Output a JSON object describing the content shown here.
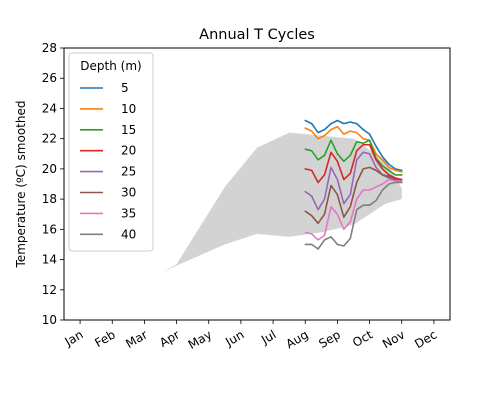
{
  "chart_data": {
    "type": "line",
    "title": "Annual T Cycles",
    "xlabel": "",
    "ylabel": "Temperature (ºC) smoothed",
    "ylim": [
      10,
      28
    ],
    "yticks": [
      10,
      12,
      14,
      16,
      18,
      20,
      22,
      24,
      26,
      28
    ],
    "xlim": [
      0,
      12
    ],
    "xticks": [
      {
        "label": "Jan",
        "x": 0.5
      },
      {
        "label": "Feb",
        "x": 1.5
      },
      {
        "label": "Mar",
        "x": 2.5
      },
      {
        "label": "Apr",
        "x": 3.5
      },
      {
        "label": "May",
        "x": 4.5
      },
      {
        "label": "Jun",
        "x": 5.5
      },
      {
        "label": "Jul",
        "x": 6.5
      },
      {
        "label": "Aug",
        "x": 7.5
      },
      {
        "label": "Sep",
        "x": 8.5
      },
      {
        "label": "Oct",
        "x": 9.5
      },
      {
        "label": "Nov",
        "x": 10.5
      },
      {
        "label": "Dec",
        "x": 11.5
      }
    ],
    "grid": false,
    "legend": {
      "title": "Depth (m)",
      "placement": "upper-left"
    },
    "band": {
      "color": "#d3d3d3",
      "upper": [
        [
          3.1,
          13.2
        ],
        [
          3.5,
          13.7
        ],
        [
          5.0,
          18.8
        ],
        [
          6.0,
          21.4
        ],
        [
          7.0,
          22.4
        ],
        [
          8.0,
          22.2
        ],
        [
          9.0,
          22.0
        ],
        [
          10.0,
          20.5
        ],
        [
          10.5,
          18.7
        ]
      ],
      "lower": [
        [
          10.5,
          18.0
        ],
        [
          10.0,
          17.7
        ],
        [
          9.0,
          16.3
        ],
        [
          8.0,
          15.8
        ],
        [
          7.0,
          15.5
        ],
        [
          6.0,
          15.7
        ],
        [
          5.0,
          15.0
        ],
        [
          3.5,
          13.6
        ],
        [
          3.1,
          13.2
        ]
      ]
    },
    "x": [
      7.5,
      7.7,
      7.9,
      8.1,
      8.3,
      8.5,
      8.7,
      8.9,
      9.1,
      9.3,
      9.5,
      9.7,
      9.9,
      10.1,
      10.3,
      10.5
    ],
    "series": [
      {
        "name": "5",
        "color": "#1f77b4",
        "values": [
          23.2,
          23.0,
          22.4,
          22.6,
          23.0,
          23.2,
          23.0,
          23.1,
          23.0,
          22.6,
          22.3,
          21.5,
          20.8,
          20.3,
          20.0,
          19.9
        ]
      },
      {
        "name": "10",
        "color": "#ff7f0e",
        "values": [
          22.7,
          22.5,
          22.0,
          22.2,
          22.6,
          22.8,
          22.3,
          22.5,
          22.4,
          22.0,
          21.9,
          21.0,
          20.6,
          20.1,
          19.9,
          19.8
        ]
      },
      {
        "name": "15",
        "color": "#2ca02c",
        "values": [
          21.3,
          21.2,
          20.6,
          20.9,
          21.9,
          21.0,
          20.5,
          20.9,
          21.8,
          21.7,
          21.9,
          20.7,
          20.2,
          19.9,
          19.6,
          19.6
        ]
      },
      {
        "name": "20",
        "color": "#d62728",
        "values": [
          20.0,
          19.9,
          19.1,
          19.6,
          21.1,
          20.5,
          19.3,
          19.7,
          21.2,
          21.6,
          21.6,
          20.6,
          20.0,
          19.6,
          19.4,
          19.3
        ]
      },
      {
        "name": "25",
        "color": "#9467bd",
        "values": [
          18.5,
          18.2,
          17.3,
          18.0,
          20.1,
          19.3,
          17.7,
          18.3,
          20.6,
          21.1,
          21.0,
          20.1,
          19.6,
          19.4,
          19.2,
          19.1
        ]
      },
      {
        "name": "30",
        "color": "#8c564b",
        "values": [
          17.2,
          16.9,
          16.4,
          17.0,
          18.9,
          18.3,
          16.8,
          17.5,
          19.1,
          20.0,
          20.1,
          19.9,
          19.6,
          19.5,
          19.3,
          19.2
        ]
      },
      {
        "name": "35",
        "color": "#e377c2",
        "values": [
          15.8,
          15.7,
          15.3,
          15.6,
          17.5,
          17.0,
          16.0,
          16.5,
          18.0,
          18.6,
          18.6,
          18.8,
          19.0,
          19.3,
          19.2,
          19.2
        ]
      },
      {
        "name": "40",
        "color": "#7f7f7f",
        "values": [
          15.0,
          15.0,
          14.7,
          15.3,
          15.5,
          15.0,
          14.9,
          15.4,
          17.3,
          17.6,
          17.6,
          17.9,
          18.6,
          19.0,
          19.1,
          19.1
        ]
      }
    ]
  }
}
